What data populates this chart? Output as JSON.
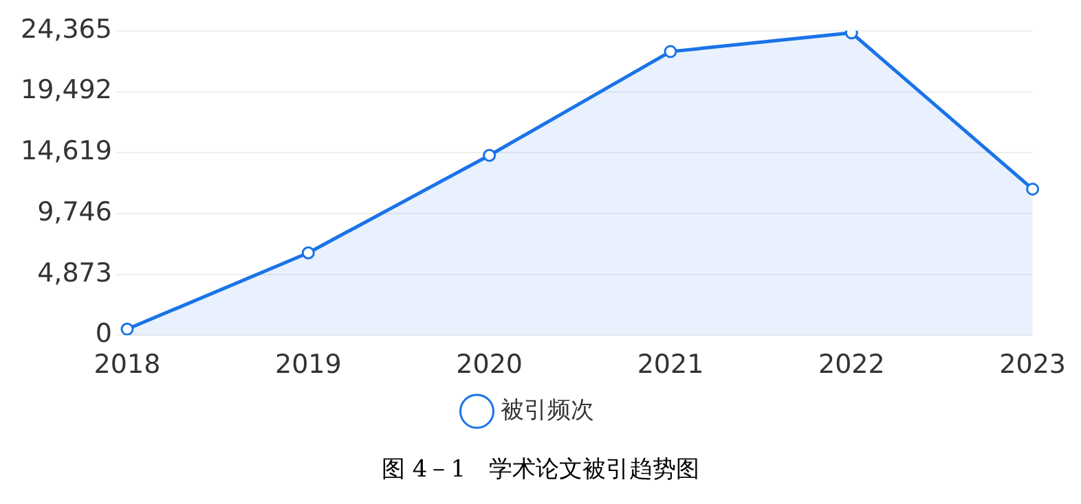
{
  "chart_data": {
    "type": "area",
    "categories": [
      "2018",
      "2019",
      "2020",
      "2021",
      "2022",
      "2023"
    ],
    "series": [
      {
        "name": "被引频次",
        "color": "#1a73e8",
        "values": [
          500,
          6600,
          14400,
          22700,
          24200,
          11700
        ]
      }
    ],
    "ylim": [
      0,
      24365
    ],
    "yticks": [
      0,
      {
        "value": 4873,
        "label": "4,873"
      },
      {
        "value": 9746,
        "label": "9,746"
      },
      {
        "value": 14619,
        "label": "14,619"
      },
      {
        "value": 19492,
        "label": "19,492"
      },
      {
        "value": 24365,
        "label": "24,365"
      }
    ],
    "grid": "y",
    "legend": "bottom",
    "marker": "circle",
    "annotations": [
      "图 4－1　学术论文被引趋势图"
    ]
  }
}
